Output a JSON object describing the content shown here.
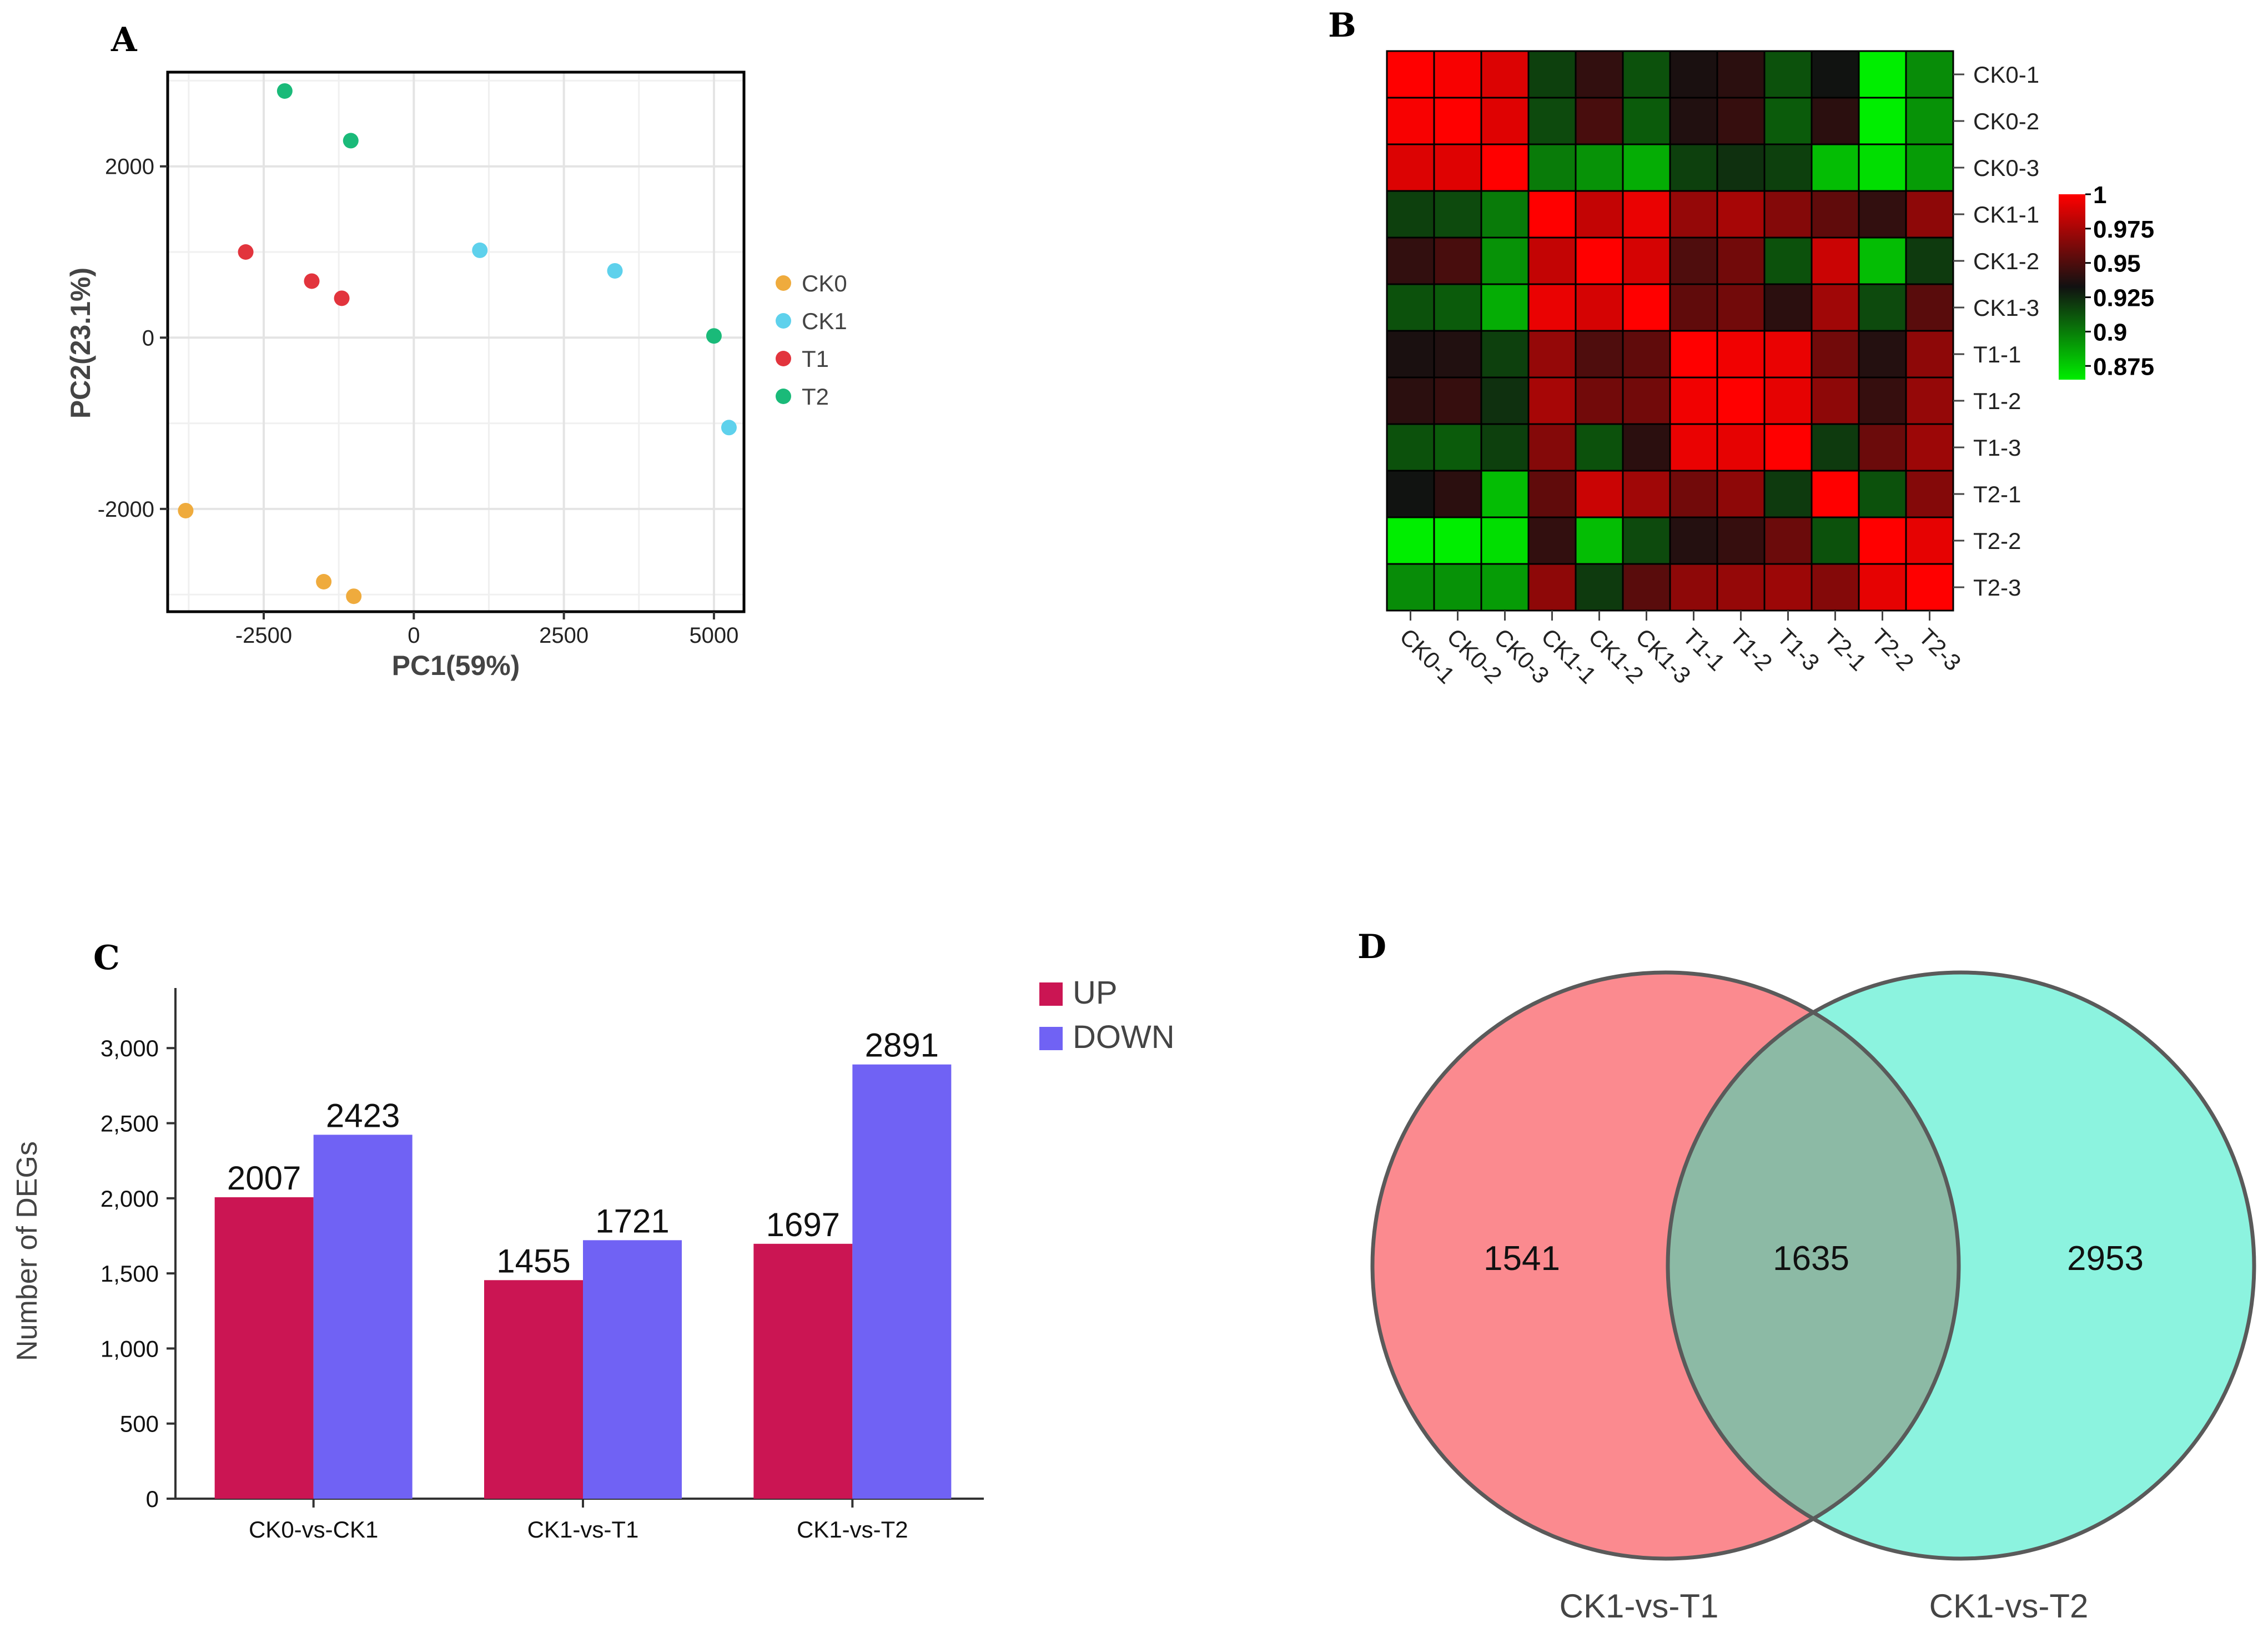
{
  "figure": {
    "panels": {
      "a": "A",
      "b": "B",
      "c": "C",
      "d": "D"
    }
  },
  "chart_data": [
    {
      "panel": "A",
      "type": "scatter",
      "title": "",
      "xlabel": "PC1(59%)",
      "ylabel": "PC2(23.1%)",
      "xlim": [
        -4100,
        5500
      ],
      "ylim": [
        -3200,
        3100
      ],
      "xticks": [
        -2500,
        0,
        2500,
        5000
      ],
      "xtick_labels": [
        "-2500",
        "0",
        "2500",
        "5000"
      ],
      "yticks": [
        2000,
        0,
        -2000
      ],
      "ytick_labels": [
        "2000",
        "0",
        "-2000"
      ],
      "grid": true,
      "legend_position": "right",
      "series": [
        {
          "name": "CK0",
          "color": "#efab3d",
          "points": [
            [
              -3800,
              -2020
            ],
            [
              -1500,
              -2850
            ],
            [
              -1000,
              -3020
            ]
          ]
        },
        {
          "name": "CK1",
          "color": "#5ed1ec",
          "points": [
            [
              1100,
              1020
            ],
            [
              3350,
              780
            ],
            [
              5250,
              -1050
            ]
          ]
        },
        {
          "name": "T1",
          "color": "#e2343d",
          "points": [
            [
              -2800,
              1000
            ],
            [
              -1700,
              660
            ],
            [
              -1200,
              460
            ]
          ]
        },
        {
          "name": "T2",
          "color": "#1aba79",
          "points": [
            [
              -2150,
              2880
            ],
            [
              -1050,
              2300
            ],
            [
              5000,
              20
            ]
          ]
        }
      ]
    },
    {
      "panel": "B",
      "type": "heatmap",
      "title": "",
      "row_labels": [
        "CK0-1",
        "CK0-2",
        "CK0-3",
        "CK1-1",
        "CK1-2",
        "CK1-3",
        "T1-1",
        "T1-2",
        "T1-3",
        "T2-1",
        "T2-2",
        "T2-3"
      ],
      "col_labels": [
        "CK0-1",
        "CK0-2",
        "CK0-3",
        "CK1-1",
        "CK1-2",
        "CK1-3",
        "T1-1",
        "T1-2",
        "T1-3",
        "T2-1",
        "T2-2",
        "T2-3"
      ],
      "values": [
        [
          1.0,
          0.998,
          0.99,
          0.918,
          0.942,
          0.913,
          0.935,
          0.94,
          0.913,
          0.932,
          0.86,
          0.895
        ],
        [
          0.998,
          1.0,
          0.991,
          0.915,
          0.948,
          0.91,
          0.937,
          0.943,
          0.91,
          0.94,
          0.858,
          0.893
        ],
        [
          0.99,
          0.991,
          1.0,
          0.9,
          0.893,
          0.885,
          0.918,
          0.923,
          0.918,
          0.88,
          0.87,
          0.89
        ],
        [
          0.918,
          0.915,
          0.9,
          1.0,
          0.983,
          0.994,
          0.97,
          0.975,
          0.965,
          0.955,
          0.942,
          0.968
        ],
        [
          0.942,
          0.948,
          0.893,
          0.983,
          1.0,
          0.988,
          0.95,
          0.96,
          0.913,
          0.985,
          0.88,
          0.92
        ],
        [
          0.913,
          0.91,
          0.885,
          0.994,
          0.988,
          1.0,
          0.955,
          0.96,
          0.94,
          0.973,
          0.915,
          0.953
        ],
        [
          0.935,
          0.937,
          0.918,
          0.97,
          0.95,
          0.955,
          1.0,
          0.996,
          0.994,
          0.96,
          0.938,
          0.968
        ],
        [
          0.94,
          0.943,
          0.923,
          0.975,
          0.96,
          0.96,
          0.996,
          1.0,
          0.993,
          0.968,
          0.943,
          0.97
        ],
        [
          0.913,
          0.91,
          0.918,
          0.965,
          0.913,
          0.94,
          0.994,
          0.993,
          1.0,
          0.92,
          0.958,
          0.972
        ],
        [
          0.932,
          0.94,
          0.88,
          0.955,
          0.985,
          0.973,
          0.96,
          0.968,
          0.92,
          1.0,
          0.913,
          0.965
        ],
        [
          0.86,
          0.858,
          0.87,
          0.942,
          0.88,
          0.915,
          0.938,
          0.943,
          0.958,
          0.913,
          1.0,
          0.993
        ],
        [
          0.895,
          0.893,
          0.89,
          0.968,
          0.92,
          0.953,
          0.968,
          0.97,
          0.972,
          0.965,
          0.993,
          1.0
        ]
      ],
      "colorbar": {
        "min": 0.865,
        "max": 1.0,
        "ticks": [
          1,
          0.975,
          0.95,
          0.925,
          0.9,
          0.875
        ],
        "tick_labels": [
          "1",
          "0.975",
          "0.95",
          "0.925",
          "0.9",
          "0.875"
        ],
        "colors": [
          "#00ee00",
          "#111111",
          "#ff0000"
        ]
      }
    },
    {
      "panel": "C",
      "type": "bar",
      "title": "",
      "xlabel": "",
      "ylabel": "Number of DEGs",
      "ylim": [
        0,
        3400
      ],
      "yticks": [
        0,
        500,
        1000,
        1500,
        2000,
        2500,
        3000
      ],
      "ytick_labels": [
        "0",
        "500",
        "1,000",
        "1,500",
        "2,000",
        "2,500",
        "3,000"
      ],
      "categories": [
        "CK0-vs-CK1",
        "CK1-vs-T1",
        "CK1-vs-T2"
      ],
      "legend_position": "top-right",
      "series": [
        {
          "name": "UP",
          "color": "#cb1553",
          "values": [
            2007,
            1455,
            1697
          ],
          "labels": [
            "2007",
            "1455",
            "1697"
          ]
        },
        {
          "name": "DOWN",
          "color": "#7062f4",
          "values": [
            2423,
            1721,
            2891
          ],
          "labels": [
            "2423",
            "1721",
            "2891"
          ]
        }
      ]
    },
    {
      "panel": "D",
      "type": "venn",
      "title": "",
      "sets": [
        {
          "name": "CK1-vs-T1",
          "color": "#fb8a8f"
        },
        {
          "name": "CK1-vs-T2",
          "color": "#8cf3df"
        }
      ],
      "overlap_color": "#8cbaa5",
      "regions": {
        "left_only": "1541",
        "both": "1635",
        "right_only": "2953"
      }
    }
  ]
}
